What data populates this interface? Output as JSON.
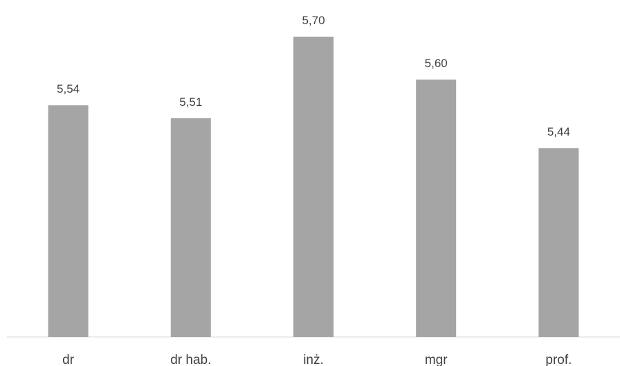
{
  "chart_data": {
    "type": "bar",
    "categories": [
      "dr",
      "dr hab.",
      "inż.",
      "mgr",
      "prof."
    ],
    "values": [
      5.54,
      5.51,
      5.7,
      5.6,
      5.44
    ],
    "value_labels": [
      "5,54",
      "5,51",
      "5,70",
      "5,60",
      "5,44"
    ],
    "title": "",
    "xlabel": "",
    "ylabel": "",
    "ylim": [
      5.0,
      5.75
    ],
    "grid": false,
    "legend": "none",
    "bar_color": "#a5a5a5",
    "axis_color": "#d9d9d9",
    "text_color": "#404040"
  }
}
